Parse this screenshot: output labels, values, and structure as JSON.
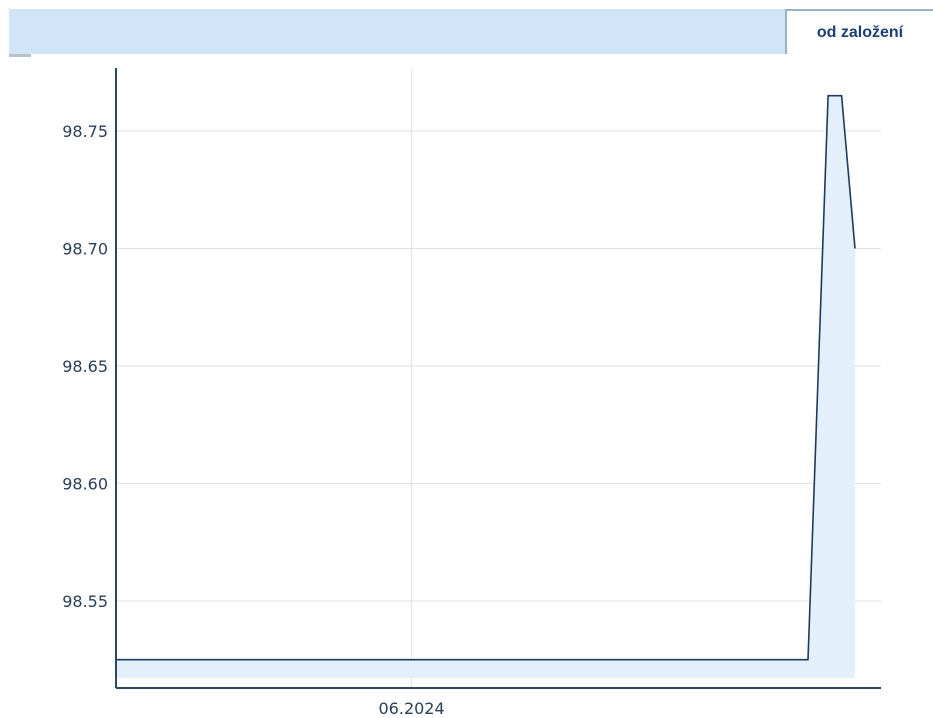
{
  "period_tab": {
    "label": "od založení"
  },
  "chart_data": {
    "type": "area",
    "x": [
      "2024-04-18",
      "2024-06-01",
      "2024-07-30",
      "2024-08-02",
      "2024-08-04",
      "2024-08-06"
    ],
    "y": [
      98.525,
      98.525,
      98.525,
      98.765,
      98.765,
      98.7
    ],
    "y_ticks": [
      "98.55",
      "98.60",
      "98.65",
      "98.70",
      "98.75"
    ],
    "x_ticks": [
      "06.2024"
    ],
    "ylim": [
      98.51,
      98.78
    ],
    "grid": true,
    "colors": {
      "line": "#1f3b5c",
      "fill": "#e3effb",
      "grid": "#e2e2e2",
      "axis": "#2b4766"
    }
  }
}
